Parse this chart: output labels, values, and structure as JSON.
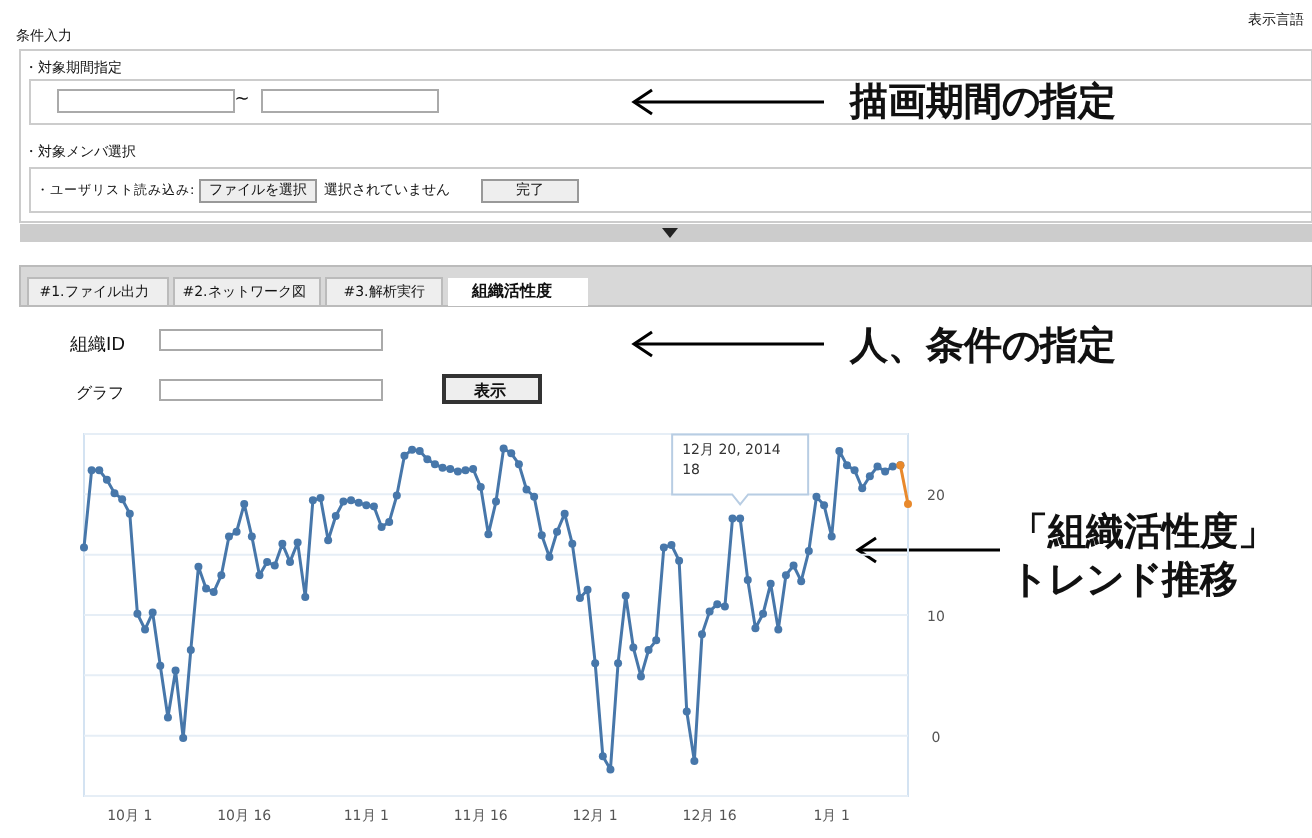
{
  "chart_data": {
    "type": "line",
    "marker": "circle",
    "grid": "y",
    "series": [
      {
        "color": "#4777aa",
        "x": [
          "2014-09-25",
          "2014-09-26",
          "2014-09-27",
          "2014-09-28",
          "2014-09-29",
          "2014-09-30",
          "2014-10-01",
          "2014-10-02",
          "2014-10-03",
          "2014-10-04",
          "2014-10-05",
          "2014-10-06",
          "2014-10-07",
          "2014-10-08",
          "2014-10-09",
          "2014-10-10",
          "2014-10-11",
          "2014-10-12",
          "2014-10-13",
          "2014-10-14",
          "2014-10-15",
          "2014-10-16",
          "2014-10-17",
          "2014-10-18",
          "2014-10-19",
          "2014-10-20",
          "2014-10-21",
          "2014-10-22",
          "2014-10-23",
          "2014-10-24",
          "2014-10-25",
          "2014-10-26",
          "2014-10-27",
          "2014-10-28",
          "2014-10-29",
          "2014-10-30",
          "2014-10-31",
          "2014-11-01",
          "2014-11-02",
          "2014-11-03",
          "2014-11-04",
          "2014-11-05",
          "2014-11-06",
          "2014-11-07",
          "2014-11-08",
          "2014-11-09",
          "2014-11-10",
          "2014-11-11",
          "2014-11-12",
          "2014-11-13",
          "2014-11-14",
          "2014-11-15",
          "2014-11-16",
          "2014-11-17",
          "2014-11-18",
          "2014-11-19",
          "2014-11-20",
          "2014-11-21",
          "2014-11-22",
          "2014-11-23",
          "2014-11-24",
          "2014-11-25",
          "2014-11-26",
          "2014-11-27",
          "2014-11-28",
          "2014-11-29",
          "2014-11-30",
          "2014-12-01",
          "2014-12-02",
          "2014-12-03",
          "2014-12-04",
          "2014-12-05",
          "2014-12-06",
          "2014-12-07",
          "2014-12-08",
          "2014-12-09",
          "2014-12-10",
          "2014-12-11",
          "2014-12-12",
          "2014-12-13",
          "2014-12-14",
          "2014-12-15",
          "2014-12-16",
          "2014-12-17",
          "2014-12-18",
          "2014-12-19",
          "2014-12-20",
          "2014-12-21",
          "2014-12-22",
          "2014-12-23",
          "2014-12-24",
          "2014-12-25",
          "2014-12-26",
          "2014-12-27",
          "2014-12-28",
          "2014-12-29",
          "2014-12-30",
          "2014-12-31",
          "2015-01-01",
          "2015-01-02",
          "2015-01-03",
          "2015-01-04",
          "2015-01-05",
          "2015-01-06",
          "2015-01-07",
          "2015-01-08",
          "2015-01-09",
          "2015-01-10"
        ],
        "values": [
          15.6,
          22.0,
          22.0,
          21.2,
          20.1,
          19.6,
          18.4,
          10.1,
          8.8,
          10.2,
          5.8,
          1.5,
          5.4,
          -0.2,
          7.1,
          14.0,
          12.2,
          11.9,
          13.3,
          16.5,
          16.9,
          19.2,
          16.5,
          13.3,
          14.4,
          14.1,
          15.9,
          14.4,
          16.0,
          11.5,
          19.5,
          19.7,
          16.2,
          18.2,
          19.4,
          19.5,
          19.3,
          19.1,
          19.0,
          17.3,
          17.7,
          19.9,
          23.2,
          23.7,
          23.6,
          22.9,
          22.5,
          22.2,
          22.1,
          21.9,
          22.0,
          22.1,
          20.6,
          16.7,
          19.4,
          23.8,
          23.4,
          22.5,
          20.4,
          19.8,
          16.6,
          14.8,
          16.9,
          18.4,
          15.9,
          11.4,
          12.1,
          6.0,
          -1.7,
          -2.8,
          6.0,
          11.6,
          7.3,
          4.9,
          7.1,
          7.9,
          15.6,
          15.8,
          14.5,
          2.0,
          -2.1,
          8.4,
          10.3,
          10.9,
          10.7,
          18,
          18,
          12.9,
          8.9,
          10.1,
          12.6,
          8.8,
          13.3,
          14.1,
          12.8,
          15.3,
          19.8,
          19.1,
          16.5,
          23.6,
          22.4,
          22.0,
          20.5,
          21.5,
          22.3,
          21.9,
          22.3,
          22.4
        ]
      },
      {
        "color": "#e8892c",
        "x": [
          "2015-01-10",
          "2015-01-11"
        ],
        "values": [
          22.4,
          19.2
        ]
      }
    ],
    "xlim": [
      "2014-09-25",
      "2015-01-11"
    ],
    "xticks": [
      {
        "value": "2014-10-01",
        "label": "10月 1"
      },
      {
        "value": "2014-10-16",
        "label": "10月 16"
      },
      {
        "value": "2014-11-01",
        "label": "11月 1"
      },
      {
        "value": "2014-11-16",
        "label": "11月 16"
      },
      {
        "value": "2014-12-01",
        "label": "12月 1"
      },
      {
        "value": "2014-12-16",
        "label": "12月 16"
      },
      {
        "value": "2015-01-01",
        "label": "1月 1"
      }
    ],
    "ylim": [
      -5,
      25
    ],
    "yticks": [
      {
        "value": -5,
        "label": null
      },
      0,
      {
        "value": 5,
        "label": null
      },
      10,
      {
        "value": 15,
        "label": null
      },
      20,
      {
        "value": 25,
        "label": null
      }
    ],
    "annotations": [
      "条件入力",
      "表示言語",
      "・対象期間指定",
      "~",
      "描画期間の指定",
      "・対象メンバ選択",
      "・ユーザリスト読み込み:",
      "ファイルを選択",
      "選択されていません",
      "完了",
      "#1.ファイル出力",
      "#2.ネットワーク図",
      "#3.解析実行",
      "組織活性度",
      "組織ID",
      "グラフ",
      "表示",
      "人、条件の指定",
      "「組織活性度」",
      "トレンド推移",
      {
        "text": "12月 20, 2014\n18",
        "x": "2014-12-20",
        "y": 18
      }
    ]
  }
}
